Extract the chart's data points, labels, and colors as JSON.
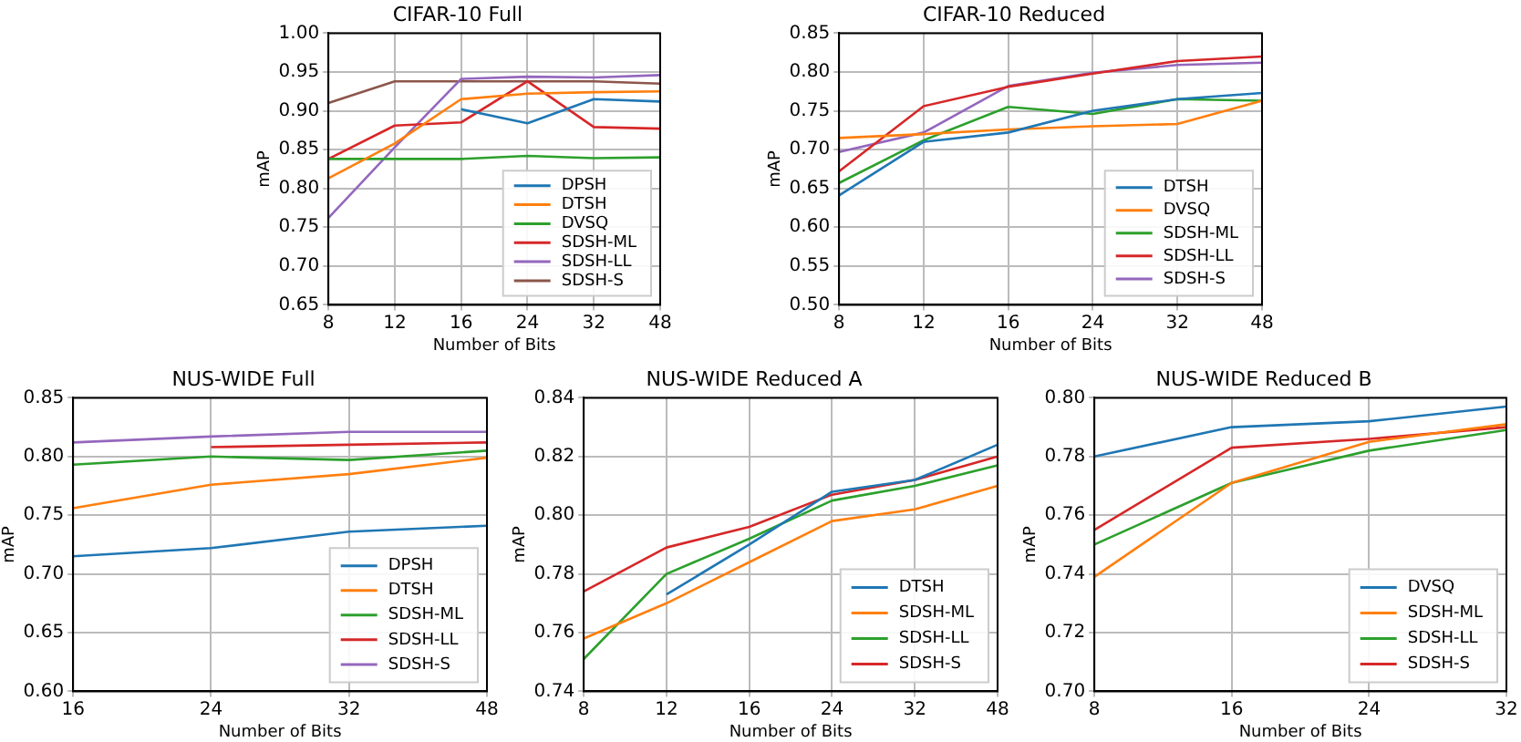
{
  "chart_data": [
    {
      "type": "line",
      "title": "CIFAR-10 Full",
      "xlabel": "Number of Bits",
      "ylabel": "mAP",
      "categories": [
        "8",
        "12",
        "16",
        "24",
        "32",
        "48"
      ],
      "ylim": [
        0.65,
        1.0
      ],
      "yticks": [
        {
          "value": 0.65,
          "label": "0.65"
        },
        {
          "value": 0.7,
          "label": "0.70"
        },
        {
          "value": 0.75,
          "label": "0.75"
        },
        {
          "value": 0.8,
          "label": "0.80"
        },
        {
          "value": 0.85,
          "label": "0.85"
        },
        {
          "value": 0.9,
          "label": "0.90"
        },
        {
          "value": 0.95,
          "label": "0.95"
        },
        {
          "value": 1.0,
          "label": "1.00"
        }
      ],
      "grid": true,
      "legend": "bottom right",
      "series": [
        {
          "name": "DPSH",
          "color": "#1f77b4",
          "values": [
            null,
            null,
            0.902,
            0.884,
            0.915,
            0.912
          ]
        },
        {
          "name": "DTSH",
          "color": "#ff7f0e",
          "values": [
            0.813,
            0.858,
            0.915,
            0.922,
            0.924,
            0.925
          ]
        },
        {
          "name": "DVSQ",
          "color": "#2ca02c",
          "values": [
            0.838,
            0.838,
            0.838,
            0.842,
            0.839,
            0.84
          ]
        },
        {
          "name": "SDSH-ML",
          "color": "#d62728",
          "values": [
            0.838,
            0.881,
            0.885,
            0.938,
            0.879,
            0.877
          ]
        },
        {
          "name": "SDSH-LL",
          "color": "#9467bd",
          "values": [
            0.762,
            0.853,
            0.941,
            0.944,
            0.943,
            0.946
          ]
        },
        {
          "name": "SDSH-S",
          "color": "#8c564b",
          "values": [
            0.91,
            0.938,
            0.938,
            0.938,
            0.938,
            0.935
          ]
        }
      ]
    },
    {
      "type": "line",
      "title": "CIFAR-10 Reduced",
      "xlabel": "Number of Bits",
      "ylabel": "mAP",
      "categories": [
        "8",
        "12",
        "16",
        "24",
        "32",
        "48"
      ],
      "ylim": [
        0.5,
        0.85
      ],
      "yticks": [
        {
          "value": 0.5,
          "label": "0.50"
        },
        {
          "value": 0.55,
          "label": "0.55"
        },
        {
          "value": 0.6,
          "label": "0.60"
        },
        {
          "value": 0.65,
          "label": "0.65"
        },
        {
          "value": 0.7,
          "label": "0.70"
        },
        {
          "value": 0.75,
          "label": "0.75"
        },
        {
          "value": 0.8,
          "label": "0.80"
        },
        {
          "value": 0.85,
          "label": "0.85"
        }
      ],
      "grid": true,
      "legend": "bottom right",
      "series": [
        {
          "name": "DTSH",
          "color": "#1f77b4",
          "values": [
            0.641,
            0.71,
            0.722,
            0.75,
            0.765,
            0.773
          ]
        },
        {
          "name": "DVSQ",
          "color": "#ff7f0e",
          "values": [
            0.715,
            0.72,
            0.726,
            0.73,
            0.733,
            0.763
          ]
        },
        {
          "name": "SDSH-ML",
          "color": "#2ca02c",
          "values": [
            0.657,
            0.712,
            0.755,
            0.746,
            0.765,
            0.763
          ]
        },
        {
          "name": "SDSH-LL",
          "color": "#d62728",
          "values": [
            0.672,
            0.756,
            0.781,
            0.798,
            0.814,
            0.82
          ]
        },
        {
          "name": "SDSH-S",
          "color": "#9467bd",
          "values": [
            0.697,
            0.722,
            0.782,
            0.799,
            0.809,
            0.812
          ]
        }
      ]
    },
    {
      "type": "line",
      "title": "NUS-WIDE Full",
      "xlabel": "Number of Bits",
      "ylabel": "mAP",
      "categories": [
        "16",
        "24",
        "32",
        "48"
      ],
      "ylim": [
        0.6,
        0.85
      ],
      "yticks": [
        {
          "value": 0.6,
          "label": "0.60"
        },
        {
          "value": 0.65,
          "label": "0.65"
        },
        {
          "value": 0.7,
          "label": "0.70"
        },
        {
          "value": 0.75,
          "label": "0.75"
        },
        {
          "value": 0.8,
          "label": "0.80"
        },
        {
          "value": 0.85,
          "label": "0.85"
        }
      ],
      "grid": true,
      "legend": "bottom right",
      "series": [
        {
          "name": "DPSH",
          "color": "#1f77b4",
          "values": [
            0.715,
            0.722,
            0.736,
            0.741
          ]
        },
        {
          "name": "DTSH",
          "color": "#ff7f0e",
          "values": [
            0.756,
            0.776,
            0.785,
            0.799
          ]
        },
        {
          "name": "SDSH-ML",
          "color": "#2ca02c",
          "values": [
            0.793,
            0.8,
            0.797,
            0.805
          ]
        },
        {
          "name": "SDSH-LL",
          "color": "#d62728",
          "values": [
            null,
            0.808,
            0.81,
            0.812
          ]
        },
        {
          "name": "SDSH-S",
          "color": "#9467bd",
          "values": [
            0.812,
            0.817,
            0.821,
            0.821
          ]
        }
      ]
    },
    {
      "type": "line",
      "title": "NUS-WIDE Reduced A",
      "xlabel": "Number of Bits",
      "ylabel": "mAP",
      "categories": [
        "8",
        "12",
        "16",
        "24",
        "32",
        "48"
      ],
      "ylim": [
        0.74,
        0.84
      ],
      "yticks": [
        {
          "value": 0.74,
          "label": "0.74"
        },
        {
          "value": 0.76,
          "label": "0.76"
        },
        {
          "value": 0.78,
          "label": "0.78"
        },
        {
          "value": 0.8,
          "label": "0.80"
        },
        {
          "value": 0.82,
          "label": "0.82"
        },
        {
          "value": 0.84,
          "label": "0.84"
        }
      ],
      "grid": true,
      "legend": "bottom right",
      "series": [
        {
          "name": "DTSH",
          "color": "#1f77b4",
          "values": [
            null,
            0.773,
            0.79,
            0.808,
            0.812,
            0.824
          ]
        },
        {
          "name": "SDSH-ML",
          "color": "#ff7f0e",
          "values": [
            0.758,
            0.77,
            0.784,
            0.798,
            0.802,
            0.81
          ]
        },
        {
          "name": "SDSH-LL",
          "color": "#2ca02c",
          "values": [
            0.751,
            0.78,
            0.792,
            0.805,
            0.81,
            0.817
          ]
        },
        {
          "name": "SDSH-S",
          "color": "#d62728",
          "values": [
            0.774,
            0.789,
            0.796,
            0.807,
            0.812,
            0.82
          ]
        }
      ]
    },
    {
      "type": "line",
      "title": "NUS-WIDE Reduced B",
      "xlabel": "Number of Bits",
      "ylabel": "mAP",
      "categories": [
        "8",
        "16",
        "24",
        "32"
      ],
      "ylim": [
        0.7,
        0.8
      ],
      "yticks": [
        {
          "value": 0.7,
          "label": "0.70"
        },
        {
          "value": 0.72,
          "label": "0.72"
        },
        {
          "value": 0.74,
          "label": "0.74"
        },
        {
          "value": 0.76,
          "label": "0.76"
        },
        {
          "value": 0.78,
          "label": "0.78"
        },
        {
          "value": 0.8,
          "label": "0.80"
        }
      ],
      "grid": true,
      "legend": "bottom right",
      "series": [
        {
          "name": "DVSQ",
          "color": "#1f77b4",
          "values": [
            0.78,
            0.79,
            0.792,
            0.797
          ]
        },
        {
          "name": "SDSH-ML",
          "color": "#ff7f0e",
          "values": [
            0.739,
            0.771,
            0.785,
            0.791
          ]
        },
        {
          "name": "SDSH-LL",
          "color": "#2ca02c",
          "values": [
            0.75,
            0.771,
            0.782,
            0.789
          ]
        },
        {
          "name": "SDSH-S",
          "color": "#d62728",
          "values": [
            0.755,
            0.783,
            0.786,
            0.79
          ]
        }
      ]
    }
  ]
}
